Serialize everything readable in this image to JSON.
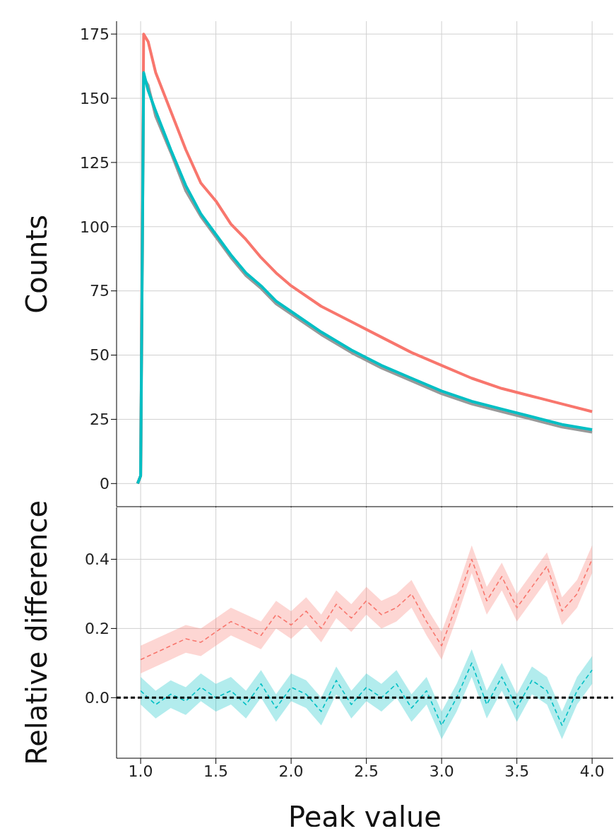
{
  "chart_data": [
    {
      "type": "line",
      "ylabel": "Counts",
      "xlim": [
        0.84,
        4.14
      ],
      "ylim": [
        -9,
        180
      ],
      "xticks": [
        {
          "value": 1,
          "label": null
        },
        {
          "value": 1.5,
          "label": null
        },
        {
          "value": 2,
          "label": null
        },
        {
          "value": 2.5,
          "label": null
        },
        {
          "value": 3,
          "label": null
        },
        {
          "value": 3.5,
          "label": null
        },
        {
          "value": 4,
          "label": null
        }
      ],
      "yticks": [
        0,
        25,
        50,
        75,
        100,
        125,
        150,
        175
      ],
      "grid": true,
      "tick_labels": "y",
      "line_style": "solid",
      "series": [
        {
          "color": "#f8766d",
          "x": [
            0.98,
            1.0,
            1.02,
            1.05,
            1.1,
            1.2,
            1.3,
            1.4,
            1.5,
            1.6,
            1.7,
            1.8,
            1.9,
            2.0,
            2.2,
            2.4,
            2.6,
            2.8,
            3.0,
            3.2,
            3.4,
            3.6,
            3.8,
            4.0
          ],
          "values": [
            0,
            3,
            175,
            172,
            160,
            145,
            130,
            117,
            110,
            101,
            95,
            88,
            82,
            77,
            69,
            63,
            57,
            51,
            46,
            41,
            37,
            34,
            31,
            28
          ]
        },
        {
          "color": "#999999",
          "x": [
            0.98,
            1.0,
            1.02,
            1.05,
            1.1,
            1.2,
            1.3,
            1.4,
            1.5,
            1.6,
            1.7,
            1.8,
            1.9,
            2.0,
            2.2,
            2.4,
            2.6,
            2.8,
            3.0,
            3.2,
            3.4,
            3.6,
            3.8,
            4.0
          ],
          "values": [
            0,
            3,
            158,
            155,
            143,
            129,
            114,
            104,
            96,
            88,
            81,
            76,
            70,
            66,
            58,
            51,
            45,
            40,
            35,
            31,
            28,
            25,
            22,
            20
          ]
        },
        {
          "color": "#00bfc4",
          "x": [
            0.98,
            1.0,
            1.02,
            1.05,
            1.1,
            1.2,
            1.3,
            1.4,
            1.5,
            1.6,
            1.7,
            1.8,
            1.9,
            2.0,
            2.2,
            2.4,
            2.6,
            2.8,
            3.0,
            3.2,
            3.4,
            3.6,
            3.8,
            4.0
          ],
          "values": [
            0,
            3,
            160,
            153,
            145,
            130,
            116,
            105,
            97,
            89,
            82,
            77,
            71,
            67,
            59,
            52,
            46,
            41,
            36,
            32,
            29,
            26,
            23,
            21
          ]
        }
      ]
    },
    {
      "type": "line",
      "xlabel": "Peak value",
      "ylabel": "Relative difference",
      "xlim": [
        0.84,
        4.14
      ],
      "ylim": [
        -0.175,
        0.55
      ],
      "xticks": [
        {
          "value": 1,
          "label": "1.0"
        },
        {
          "value": 1.5,
          "label": "1.5"
        },
        {
          "value": 2,
          "label": "2.0"
        },
        {
          "value": 2.5,
          "label": "2.5"
        },
        {
          "value": 3,
          "label": "3.0"
        },
        {
          "value": 3.5,
          "label": "3.5"
        },
        {
          "value": 4,
          "label": "4.0"
        }
      ],
      "yticks": [
        {
          "value": 0,
          "label": "0.0"
        },
        {
          "value": 0.2,
          "label": "0.2"
        },
        {
          "value": 0.4,
          "label": "0.4"
        }
      ],
      "grid": true,
      "line_style": "dashed",
      "ref_lines": [
        {
          "axis": "y",
          "value": 0,
          "color": "#000000",
          "line_style": "dashed"
        }
      ],
      "series": [
        {
          "color": "#f8766d",
          "x": [
            1.0,
            1.1,
            1.2,
            1.3,
            1.4,
            1.5,
            1.6,
            1.7,
            1.8,
            1.9,
            2.0,
            2.1,
            2.2,
            2.3,
            2.4,
            2.5,
            2.6,
            2.7,
            2.8,
            2.9,
            3.0,
            3.1,
            3.2,
            3.3,
            3.4,
            3.5,
            3.6,
            3.7,
            3.8,
            3.9,
            4.0
          ],
          "values": [
            0.11,
            0.13,
            0.15,
            0.17,
            0.16,
            0.19,
            0.22,
            0.2,
            0.18,
            0.24,
            0.21,
            0.25,
            0.2,
            0.27,
            0.23,
            0.28,
            0.24,
            0.26,
            0.3,
            0.22,
            0.15,
            0.27,
            0.4,
            0.28,
            0.35,
            0.26,
            0.32,
            0.38,
            0.25,
            0.3,
            0.4
          ],
          "lower": [
            0.07,
            0.09,
            0.11,
            0.13,
            0.12,
            0.15,
            0.18,
            0.16,
            0.14,
            0.2,
            0.17,
            0.21,
            0.16,
            0.23,
            0.19,
            0.24,
            0.2,
            0.22,
            0.26,
            0.18,
            0.11,
            0.23,
            0.36,
            0.24,
            0.31,
            0.22,
            0.28,
            0.34,
            0.21,
            0.26,
            0.36
          ],
          "upper": [
            0.15,
            0.17,
            0.19,
            0.21,
            0.2,
            0.23,
            0.26,
            0.24,
            0.22,
            0.28,
            0.25,
            0.29,
            0.24,
            0.31,
            0.27,
            0.32,
            0.28,
            0.3,
            0.34,
            0.26,
            0.19,
            0.31,
            0.44,
            0.32,
            0.39,
            0.3,
            0.36,
            0.42,
            0.29,
            0.34,
            0.44
          ]
        },
        {
          "color": "#00bfc4",
          "x": [
            1.0,
            1.1,
            1.2,
            1.3,
            1.4,
            1.5,
            1.6,
            1.7,
            1.8,
            1.9,
            2.0,
            2.1,
            2.2,
            2.3,
            2.4,
            2.5,
            2.6,
            2.7,
            2.8,
            2.9,
            3.0,
            3.1,
            3.2,
            3.3,
            3.4,
            3.5,
            3.6,
            3.7,
            3.8,
            3.9,
            4.0
          ],
          "values": [
            0.02,
            -0.02,
            0.01,
            -0.01,
            0.03,
            0.0,
            0.02,
            -0.02,
            0.04,
            -0.03,
            0.03,
            0.01,
            -0.04,
            0.05,
            -0.02,
            0.03,
            0.0,
            0.04,
            -0.03,
            0.02,
            -0.08,
            0.0,
            0.1,
            -0.02,
            0.06,
            -0.03,
            0.05,
            0.02,
            -0.08,
            0.02,
            0.08
          ],
          "lower": [
            -0.02,
            -0.06,
            -0.03,
            -0.05,
            -0.01,
            -0.04,
            -0.02,
            -0.06,
            0.0,
            -0.07,
            -0.01,
            -0.03,
            -0.08,
            0.01,
            -0.06,
            -0.01,
            -0.04,
            0.0,
            -0.07,
            -0.02,
            -0.12,
            -0.04,
            0.06,
            -0.06,
            0.02,
            -0.07,
            0.01,
            -0.02,
            -0.12,
            -0.02,
            0.04
          ],
          "upper": [
            0.06,
            0.02,
            0.05,
            0.03,
            0.07,
            0.04,
            0.06,
            0.02,
            0.08,
            0.01,
            0.07,
            0.05,
            0.0,
            0.09,
            0.02,
            0.07,
            0.04,
            0.08,
            0.01,
            0.06,
            -0.04,
            0.04,
            0.14,
            0.02,
            0.1,
            0.01,
            0.09,
            0.06,
            -0.04,
            0.06,
            0.12
          ]
        }
      ]
    }
  ]
}
